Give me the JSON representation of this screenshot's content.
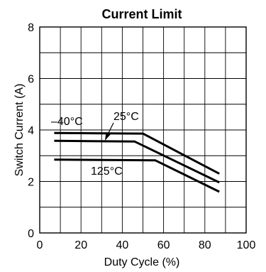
{
  "chart_data": {
    "type": "line",
    "title": "Current Limit",
    "xlabel": "Duty Cycle (%)",
    "ylabel": "Switch Current (A)",
    "xlim": [
      0,
      100
    ],
    "ylim": [
      0,
      8
    ],
    "x_ticks": [
      0,
      20,
      40,
      60,
      80,
      100
    ],
    "y_ticks": [
      0,
      2,
      4,
      6,
      8
    ],
    "x_tick_labels": [
      "0",
      "20",
      "40",
      "60",
      "80",
      "100"
    ],
    "y_tick_labels": [
      "0",
      "2",
      "4",
      "6",
      "8"
    ],
    "grid": true,
    "series": [
      {
        "name": "–40°C",
        "x": [
          7,
          50,
          87
        ],
        "y": [
          3.88,
          3.86,
          2.3
        ]
      },
      {
        "name": "25°C",
        "x": [
          7,
          46,
          87
        ],
        "y": [
          3.58,
          3.55,
          1.96
        ]
      },
      {
        "name": "125°C",
        "x": [
          7,
          56,
          87
        ],
        "y": [
          2.85,
          2.82,
          1.6
        ]
      }
    ]
  }
}
